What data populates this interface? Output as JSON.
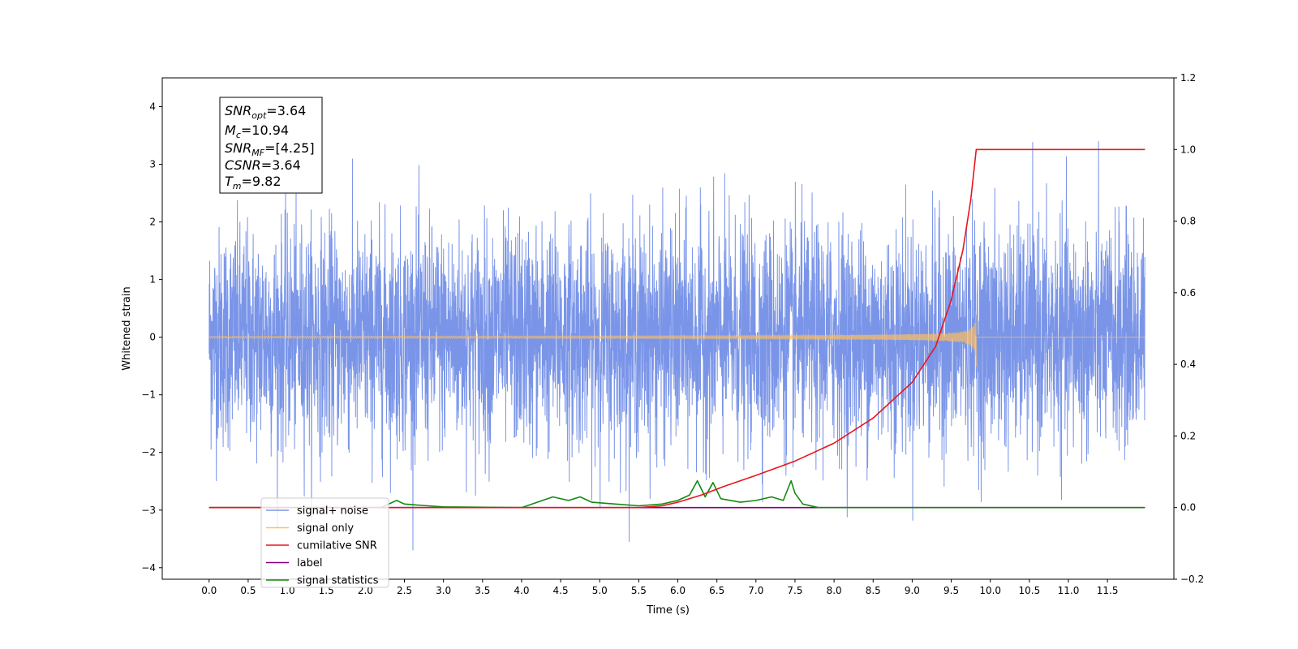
{
  "chart_data": {
    "type": "line",
    "xlabel": "Time (s)",
    "ylabel": "Whitened strain",
    "xlim": [
      -0.6,
      12.35
    ],
    "ylim": [
      -4.2,
      4.5
    ],
    "y2lim": [
      -0.2,
      1.2
    ],
    "x_ticks": [
      "0.0",
      "0.5",
      "1.0",
      "1.5",
      "2.0",
      "2.5",
      "3.0",
      "3.5",
      "4.0",
      "4.5",
      "5.0",
      "5.5",
      "6.0",
      "6.5",
      "7.0",
      "7.5",
      "8.0",
      "8.5",
      "9.0",
      "9.5",
      "10.0",
      "10.5",
      "11.0",
      "11.5"
    ],
    "y_ticks": [
      "4",
      "3",
      "2",
      "1",
      "0",
      "−1",
      "−2",
      "−3",
      "−4"
    ],
    "y2_ticks": [
      "1.2",
      "1.0",
      "0.8",
      "0.6",
      "0.4",
      "0.2",
      "0.0",
      "−0.2"
    ],
    "grid": false,
    "legend_position": "lower-left",
    "annotation": {
      "snr_opt": "=3.64",
      "mc": "=10.94",
      "snr_mf": "=[4.25]",
      "csnr": "=3.64",
      "tm": "=9.82"
    },
    "series": [
      {
        "name": "signal+ noise",
        "color": "#7a95e8",
        "axis": "left",
        "x_range": [
          0.0,
          11.98
        ],
        "amplitude_range": [
          -3.7,
          4.1
        ]
      },
      {
        "name": "signal only",
        "color": "#ffbf60",
        "axis": "left",
        "x_range": [
          0.0,
          11.98
        ],
        "merger_time": 9.82,
        "peak_amplitude": 0.55
      },
      {
        "name": "cumilative SNR",
        "color": "#e8151b",
        "axis": "right",
        "x": [
          0.0,
          5.5,
          5.8,
          6.0,
          6.3,
          6.6,
          7.0,
          7.5,
          8.0,
          8.5,
          9.0,
          9.3,
          9.5,
          9.65,
          9.75,
          9.82,
          11.98
        ],
        "values": [
          0.0,
          0.0,
          0.005,
          0.015,
          0.035,
          0.06,
          0.09,
          0.13,
          0.18,
          0.25,
          0.35,
          0.45,
          0.58,
          0.72,
          0.86,
          1.0,
          1.0
        ]
      },
      {
        "name": "label",
        "color": "#800080",
        "axis": "right",
        "x": [
          0.0,
          11.98
        ],
        "values": [
          0.0,
          0.0
        ]
      },
      {
        "name": "signal statistics",
        "color": "#118a11",
        "axis": "right",
        "x": [
          0.0,
          2.2,
          2.4,
          2.5,
          2.8,
          3.0,
          4.0,
          4.2,
          4.4,
          4.6,
          4.75,
          4.9,
          5.2,
          5.5,
          5.8,
          6.0,
          6.15,
          6.25,
          6.35,
          6.45,
          6.55,
          6.8,
          7.0,
          7.2,
          7.35,
          7.45,
          7.5,
          7.6,
          7.8,
          8.0,
          11.98
        ],
        "values": [
          0.0,
          0.0,
          0.02,
          0.01,
          0.005,
          0.002,
          0.0,
          0.015,
          0.03,
          0.02,
          0.03,
          0.015,
          0.01,
          0.005,
          0.01,
          0.02,
          0.035,
          0.075,
          0.03,
          0.07,
          0.025,
          0.015,
          0.02,
          0.03,
          0.02,
          0.075,
          0.04,
          0.01,
          0.0,
          0.0,
          0.0
        ]
      }
    ]
  }
}
